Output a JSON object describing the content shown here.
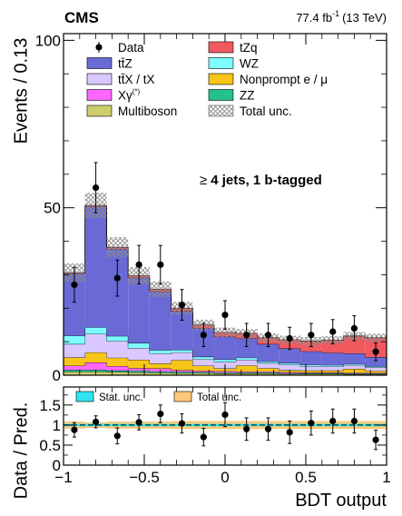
{
  "header": {
    "experiment": "CMS",
    "lumi_value": "77.4 fb",
    "lumi_exponent": "-1",
    "energy": "(13 TeV)"
  },
  "annotation": {
    "symbol": "≥",
    "text": "4 jets, 1 b-tagged"
  },
  "legend": {
    "main": [
      {
        "key": "data",
        "label": "Data",
        "kind": "marker"
      },
      {
        "key": "tZq",
        "label": "tZq",
        "kind": "fill"
      },
      {
        "key": "ttZ",
        "label": "tt̄Z",
        "kind": "fill"
      },
      {
        "key": "WZ",
        "label": "WZ",
        "kind": "fill"
      },
      {
        "key": "ttX",
        "label": "tt̄X / tX",
        "kind": "fill"
      },
      {
        "key": "nonprompt",
        "label": "Nonprompt e / μ",
        "kind": "fill"
      },
      {
        "key": "Xgamma",
        "label": "Xγ",
        "sup": "(*)",
        "kind": "fill"
      },
      {
        "key": "ZZ",
        "label": "ZZ",
        "kind": "fill"
      },
      {
        "key": "multiboson",
        "label": "Multiboson",
        "kind": "fill"
      },
      {
        "key": "unc",
        "label": "Total unc.",
        "kind": "hatch"
      }
    ],
    "ratio": [
      {
        "key": "stat",
        "label": "Stat. unc."
      },
      {
        "key": "total",
        "label": "Total unc."
      }
    ]
  },
  "colors": {
    "tZq": "#f05a5f",
    "ttZ": "#6a6ad6",
    "WZ": "#7dfdff",
    "ttX": "#d9c7ff",
    "nonprompt": "#f7c418",
    "Xgamma": "#ff66ff",
    "ZZ": "#26c08f",
    "multiboson": "#cdcd6b",
    "stat_band": "#2fe6f0",
    "total_band": "#ffc97a",
    "hatch": "#9a9a9a"
  },
  "chart_data": {
    "type": "bar",
    "subtype": "stacked histogram with data points and ratio panel",
    "xlabel": "BDT output",
    "ylabel": "Events / 0.13",
    "ratio_ylabel": "Data / Pred.",
    "xlim": [
      -1,
      1
    ],
    "ylim": [
      0,
      102
    ],
    "ratio_ylim": [
      0,
      1.95
    ],
    "bin_edges": [
      -1,
      -0.867,
      -0.733,
      -0.6,
      -0.467,
      -0.333,
      -0.2,
      -0.067,
      0.067,
      0.2,
      0.333,
      0.467,
      0.6,
      0.733,
      0.867,
      1
    ],
    "x_ticks": [
      -1,
      -0.5,
      0,
      0.5,
      1
    ],
    "x_tick_labels": [
      "−1",
      "−0.5",
      "0",
      "0.5",
      "1"
    ],
    "y_ticks": [
      0,
      50,
      100
    ],
    "y_tick_labels": [
      "0",
      "50",
      "100"
    ],
    "ratio_y_ticks": [
      0,
      0.5,
      1,
      1.5
    ],
    "ratio_y_tick_labels": [
      "0",
      "0.5",
      "1",
      "1.5"
    ],
    "stack_order": [
      "multiboson",
      "ZZ",
      "Xgamma",
      "nonprompt",
      "ttX",
      "WZ",
      "ttZ",
      "tZq"
    ],
    "series": [
      {
        "key": "multiboson",
        "name": "Multiboson",
        "values": [
          1.0,
          1.0,
          0.9,
          0.8,
          0.7,
          0.6,
          0.6,
          0.5,
          0.5,
          0.5,
          0.4,
          0.4,
          0.4,
          0.3,
          0.3
        ]
      },
      {
        "key": "ZZ",
        "name": "ZZ",
        "values": [
          0.6,
          0.6,
          0.5,
          0.5,
          0.4,
          0.4,
          0.3,
          0.3,
          0.3,
          0.3,
          0.2,
          0.2,
          0.2,
          0.2,
          0.2
        ]
      },
      {
        "key": "Xgamma",
        "name": "Xγ(*)",
        "values": [
          1.2,
          2.2,
          1.3,
          0.8,
          0.9,
          0.5,
          0.4,
          0.4,
          0.3,
          0.3,
          0.3,
          0.2,
          0.2,
          0.2,
          0.2
        ]
      },
      {
        "key": "nonprompt",
        "name": "Nonprompt e / μ",
        "values": [
          2.5,
          3.0,
          2.5,
          2.5,
          1.5,
          3.0,
          1.5,
          0.8,
          1.8,
          1.0,
          0.6,
          0.6,
          0.6,
          1.2,
          0.6
        ]
      },
      {
        "key": "ttX",
        "name": "tt̄X / tX",
        "values": [
          4.0,
          5.5,
          5.0,
          3.5,
          3.0,
          2.3,
          2.0,
          2.0,
          1.7,
          1.5,
          1.6,
          1.3,
          1.2,
          1.1,
          1.0
        ]
      },
      {
        "key": "WZ",
        "name": "WZ",
        "values": [
          2.5,
          2.0,
          1.5,
          1.5,
          1.0,
          0.8,
          0.7,
          0.7,
          0.6,
          0.5,
          0.5,
          0.4,
          0.4,
          0.3,
          0.3
        ]
      },
      {
        "key": "ttZ",
        "name": "tt̄Z",
        "values": [
          18.5,
          36.0,
          26.0,
          19.5,
          17.5,
          11.5,
          8.5,
          6.8,
          5.8,
          5.2,
          4.4,
          4.0,
          3.7,
          3.2,
          2.8
        ]
      },
      {
        "key": "tZq",
        "name": "tZq",
        "values": [
          0.3,
          0.4,
          0.5,
          0.6,
          0.7,
          0.9,
          1.0,
          1.3,
          1.5,
          1.9,
          2.6,
          3.1,
          3.8,
          5.2,
          5.8
        ]
      }
    ],
    "total_unc": [
      2.8,
      3.8,
      3.0,
      2.6,
      2.3,
      1.9,
      1.6,
      1.4,
      1.3,
      1.3,
      1.2,
      1.2,
      1.2,
      1.2,
      1.2
    ],
    "data": {
      "x": [
        -0.933,
        -0.8,
        -0.667,
        -0.533,
        -0.4,
        -0.267,
        -0.133,
        0.0,
        0.133,
        0.267,
        0.4,
        0.533,
        0.667,
        0.8,
        0.933
      ],
      "y": [
        27,
        56,
        29,
        33,
        33,
        21,
        12,
        18,
        12,
        12,
        11,
        12,
        13,
        14,
        7
      ]
    },
    "ratio": {
      "x": [
        -0.933,
        -0.8,
        -0.667,
        -0.533,
        -0.4,
        -0.267,
        -0.133,
        0.0,
        0.133,
        0.267,
        0.4,
        0.533,
        0.667,
        0.8,
        0.933
      ],
      "y": [
        0.88,
        1.08,
        0.73,
        1.07,
        1.28,
        1.04,
        0.7,
        1.26,
        0.9,
        0.9,
        0.82,
        1.05,
        1.1,
        1.1,
        0.63
      ],
      "err": [
        0.18,
        0.15,
        0.2,
        0.19,
        0.22,
        0.24,
        0.22,
        0.3,
        0.28,
        0.28,
        0.28,
        0.3,
        0.3,
        0.3,
        0.24
      ],
      "stat_unc": [
        0.03,
        0.03,
        0.03,
        0.03,
        0.03,
        0.03,
        0.03,
        0.03,
        0.03,
        0.03,
        0.03,
        0.03,
        0.03,
        0.03,
        0.03
      ],
      "total_unc": [
        0.09,
        0.07,
        0.09,
        0.09,
        0.09,
        0.1,
        0.1,
        0.1,
        0.1,
        0.1,
        0.1,
        0.1,
        0.1,
        0.1,
        0.1
      ]
    }
  }
}
